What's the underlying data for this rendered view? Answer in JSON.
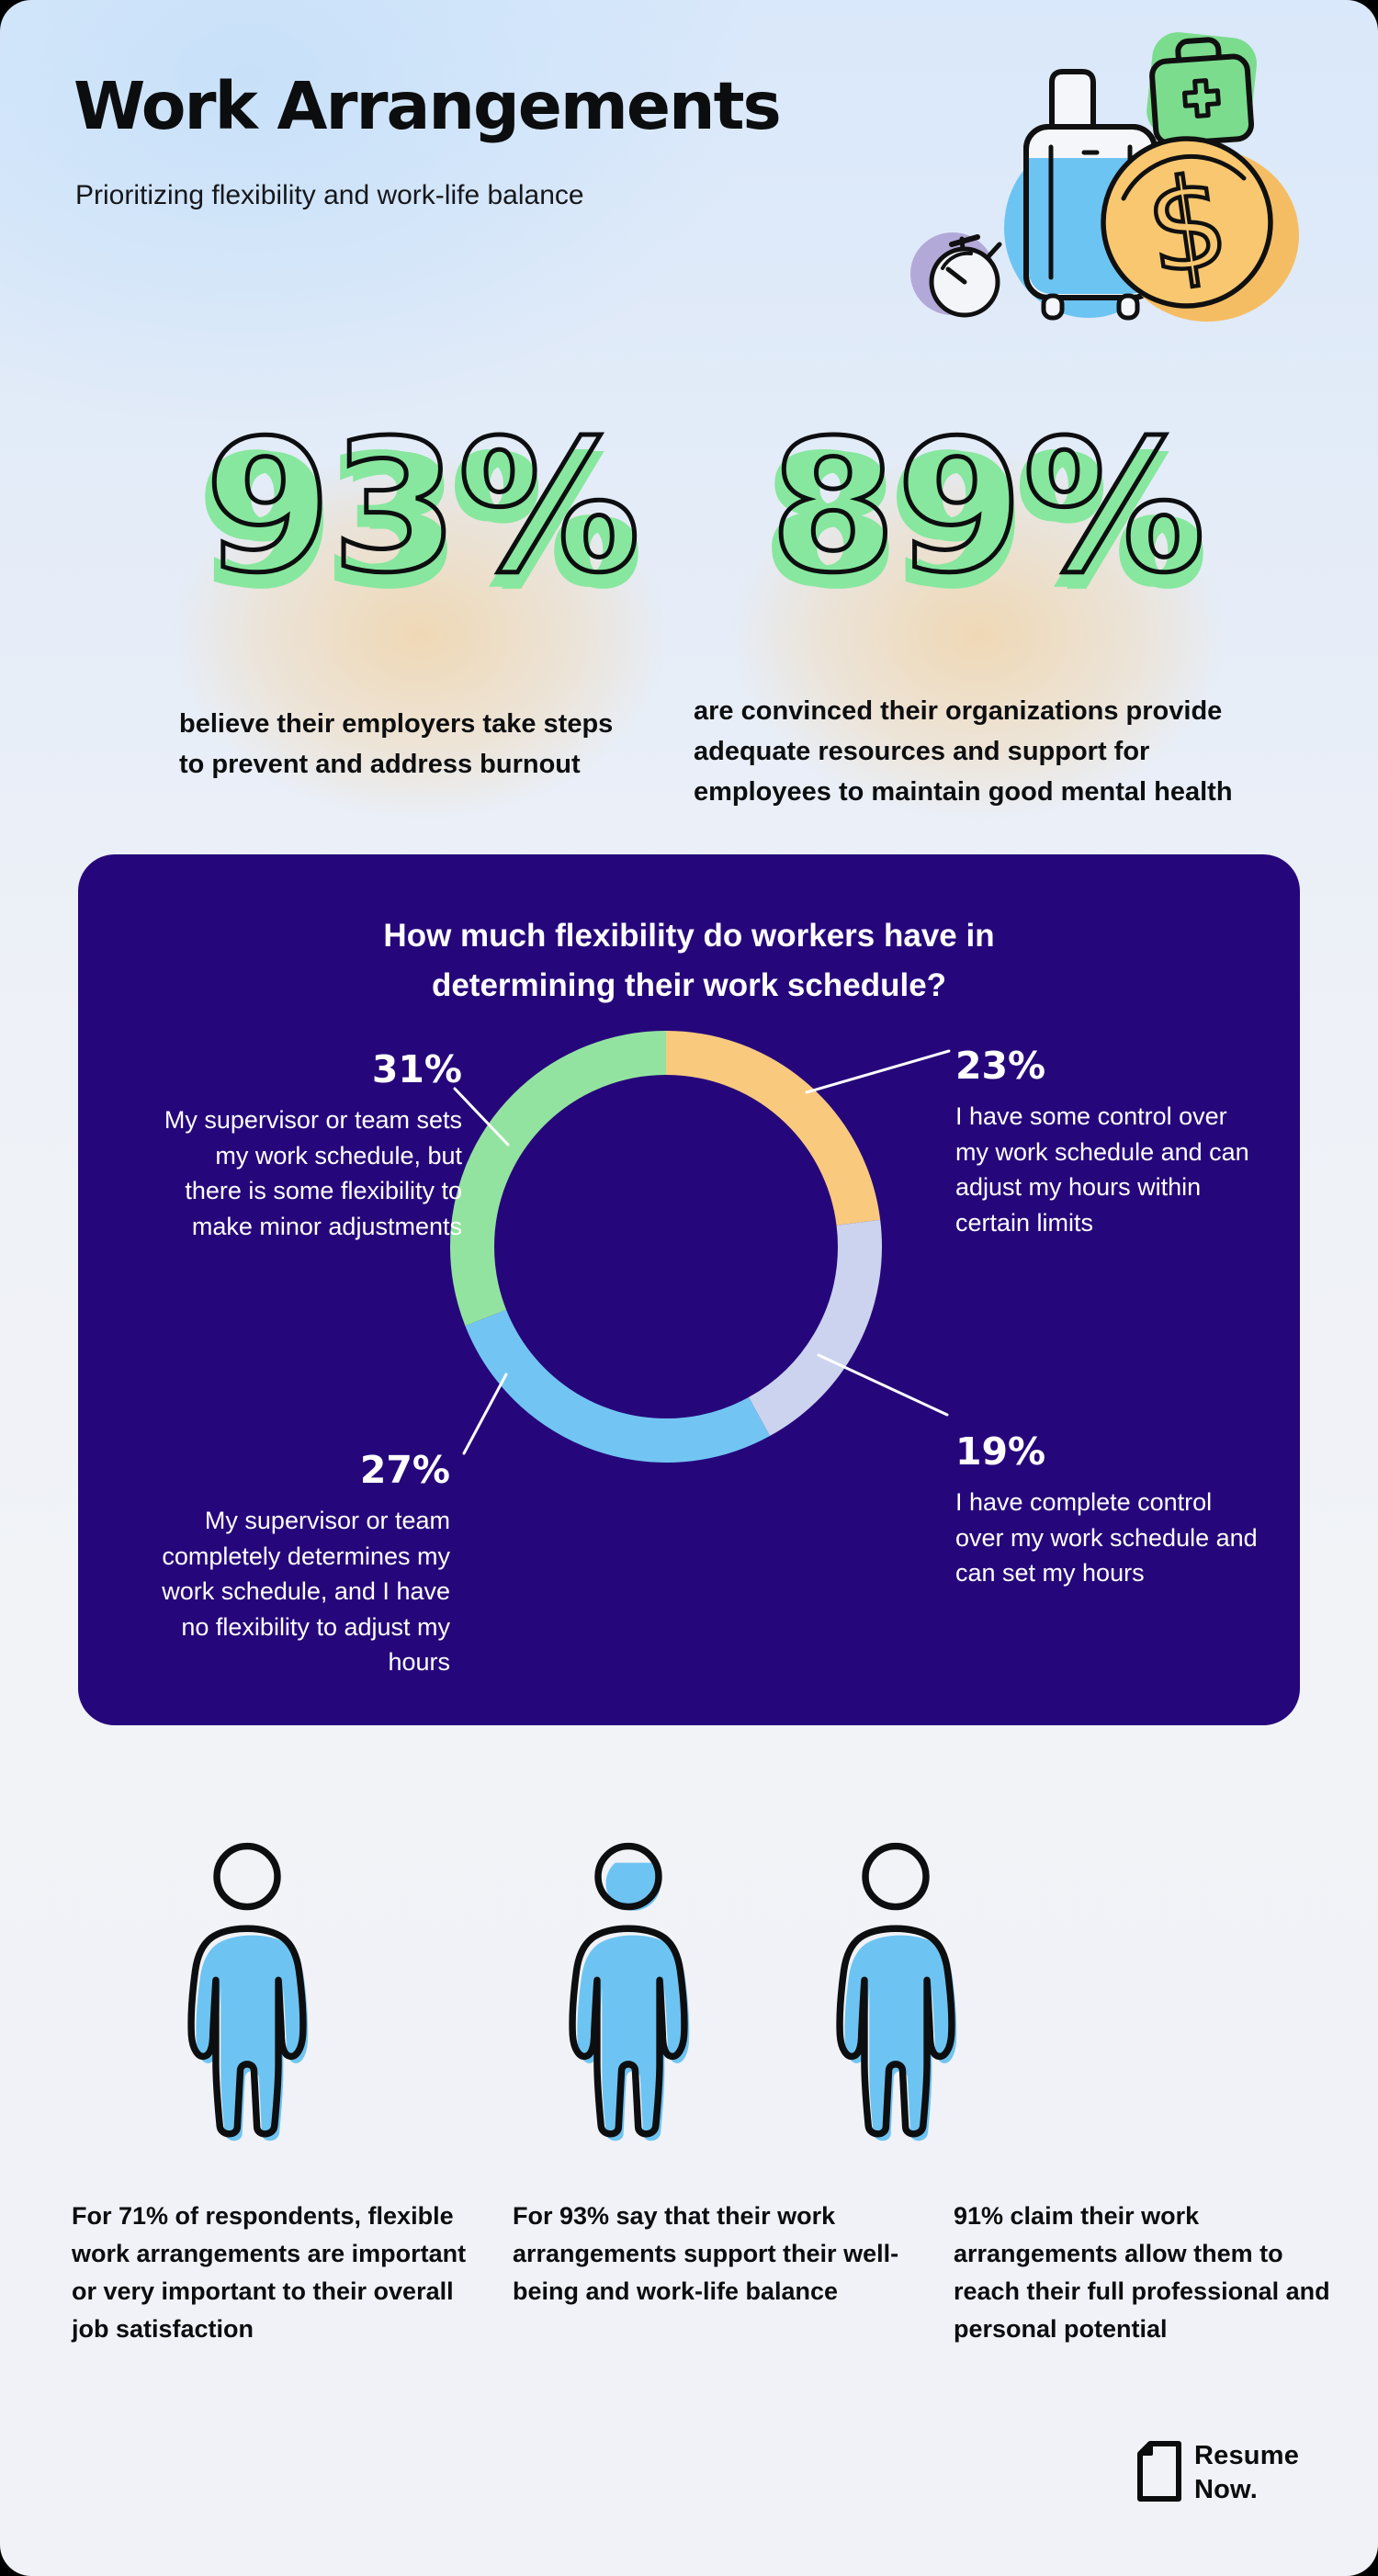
{
  "page": {
    "title": "Work Arrangements",
    "subtitle": "Prioritizing flexibility and work-life balance"
  },
  "stats": [
    {
      "value": "93%",
      "description": "believe their employers take steps to prevent and address burnout"
    },
    {
      "value": "89%",
      "description": "are convinced their organizations provide adequate resources and support for employees to maintain good mental health"
    }
  ],
  "chart_data": {
    "type": "pie",
    "variant": "donut",
    "title": "How much flexibility do workers have in determining their work schedule?",
    "direction": "clockwise",
    "start_at": "12-oclock",
    "legend_position": "callout-labels",
    "segments": [
      {
        "label": "23%",
        "value": 23,
        "color": "#f9c97d",
        "description": "I have some control over my work schedule and can adjust my hours within certain limits"
      },
      {
        "label": "19%",
        "value": 19,
        "color": "#ccd3ee",
        "description": "I have complete control over my work schedule and can set my hours"
      },
      {
        "label": "27%",
        "value": 27,
        "color": "#72c5f3",
        "description": "My supervisor or team completely determines my work schedule, and I have no flexibility to adjust my hours"
      },
      {
        "label": "31%",
        "value": 31,
        "color": "#93e3a0",
        "description": "My supervisor or team sets my work schedule, but there is some flexibility to make minor adjustments"
      }
    ]
  },
  "figures": [
    {
      "percent": 71,
      "text": "For 71% of respondents, flexible work arrangements are important or very important to their overall job satisfaction"
    },
    {
      "percent": 93,
      "text": "For 93% say that their work arrangements support their well-being and work-life balance"
    },
    {
      "percent": 91,
      "text": "91% claim their work arrangements allow them to reach their full professional and personal potential"
    }
  ],
  "footer": {
    "brand_line1": "Resume",
    "brand_line2": "Now."
  },
  "colors": {
    "panel": "#26077b",
    "num_green": "#87e79e",
    "figure_blue": "#6dc4f2",
    "glow_orange": "#f7c77e",
    "illustration": {
      "stopwatch_blob": "#b2a9d8",
      "suitcase_blue": "#6cc4f3",
      "kit_green": "#7cdc8e",
      "coin_orange": "#f8c76f"
    }
  }
}
